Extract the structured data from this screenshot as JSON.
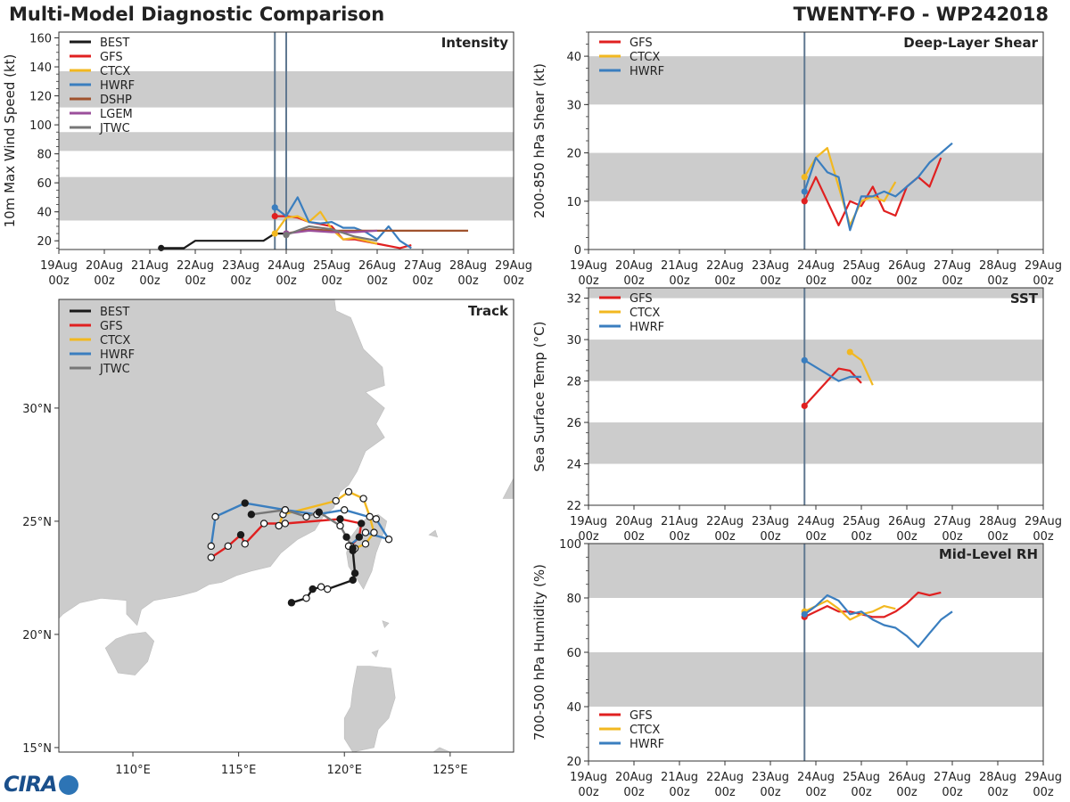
{
  "header": {
    "left_title": "Multi-Model Diagnostic Comparison",
    "right_title": "TWENTY-FO - WP242018"
  },
  "logo": {
    "text": "CIRA"
  },
  "colors": {
    "BEST": "#1a1a1a",
    "GFS": "#e02020",
    "CTCX": "#f2b820",
    "HWRF": "#3a7ebf",
    "DSHP": "#a0522d",
    "LGEM": "#9b4f9b",
    "JTWC": "#777777",
    "band": "#cccccc",
    "land": "#cccccc",
    "marker": "#607890"
  },
  "time_axis": {
    "range": [
      19,
      29
    ],
    "ticks": [
      {
        "day": 19,
        "top": "19Aug",
        "bottom": "00z"
      },
      {
        "day": 20,
        "top": "20Aug",
        "bottom": "00z"
      },
      {
        "day": 21,
        "top": "21Aug",
        "bottom": "00z"
      },
      {
        "day": 22,
        "top": "22Aug",
        "bottom": "00z"
      },
      {
        "day": 23,
        "top": "23Aug",
        "bottom": "00z"
      },
      {
        "day": 24,
        "top": "24Aug",
        "bottom": "00z"
      },
      {
        "day": 25,
        "top": "25Aug",
        "bottom": "00z"
      },
      {
        "day": 26,
        "top": "26Aug",
        "bottom": "00z"
      },
      {
        "day": 27,
        "top": "27Aug",
        "bottom": "00z"
      },
      {
        "day": 28,
        "top": "28Aug",
        "bottom": "00z"
      },
      {
        "day": 29,
        "top": "29Aug",
        "bottom": "00z"
      }
    ]
  },
  "chart_data": [
    {
      "id": "intensity",
      "type": "line",
      "title": "Intensity",
      "ylabel": "10m Max Wind Speed (kt)",
      "ylim": [
        14,
        164
      ],
      "yticks": [
        20,
        40,
        60,
        80,
        100,
        120,
        140,
        160
      ],
      "bands": [
        [
          34,
          64
        ],
        [
          82,
          95
        ],
        [
          112,
          137
        ]
      ],
      "markers": [
        23.75,
        24.0
      ],
      "legend": [
        "BEST",
        "GFS",
        "CTCX",
        "HWRF",
        "DSHP",
        "LGEM",
        "JTWC"
      ],
      "series": [
        {
          "name": "BEST",
          "x": [
            21.25,
            21.75,
            22.0,
            23.5,
            23.75,
            24.0
          ],
          "y": [
            15,
            15,
            20,
            20,
            25,
            25
          ]
        },
        {
          "name": "GFS",
          "x": [
            23.75,
            24.0,
            24.25,
            24.5,
            25.0,
            25.25,
            25.5,
            26.0,
            26.5,
            26.75
          ],
          "y": [
            37,
            37,
            36,
            33,
            30,
            21,
            21,
            18,
            15,
            17
          ]
        },
        {
          "name": "CTCX",
          "x": [
            23.75,
            24.0,
            24.25,
            24.5,
            24.75,
            25.0,
            25.25,
            25.5,
            25.75,
            26.0
          ],
          "y": [
            25,
            36,
            37,
            33,
            40,
            28,
            21,
            22,
            20,
            18
          ]
        },
        {
          "name": "HWRF",
          "x": [
            23.75,
            24.0,
            24.25,
            24.5,
            24.75,
            25.0,
            25.25,
            25.5,
            25.75,
            26.0,
            26.25,
            26.5,
            26.75
          ],
          "y": [
            43,
            37,
            50,
            33,
            32,
            33,
            29,
            29,
            26,
            21,
            30,
            20,
            15
          ]
        },
        {
          "name": "DSHP",
          "x": [
            24.0,
            24.5,
            25.0,
            25.5,
            26.0,
            26.5,
            27.0,
            27.5,
            28.0
          ],
          "y": [
            25,
            28,
            27,
            27,
            27,
            27,
            27,
            27,
            27
          ]
        },
        {
          "name": "LGEM",
          "x": [
            24.0,
            24.5,
            25.0,
            25.5,
            26.0
          ],
          "y": [
            25,
            27,
            26,
            26,
            27
          ]
        },
        {
          "name": "JTWC",
          "x": [
            24.0,
            24.5,
            25.0,
            25.5,
            26.0
          ],
          "y": [
            24,
            30,
            28,
            23,
            20
          ]
        }
      ]
    },
    {
      "id": "shear",
      "type": "line",
      "title": "Deep-Layer Shear",
      "ylabel": "200-850 hPa Shear (kt)",
      "ylim": [
        0,
        45
      ],
      "yticks": [
        0,
        10,
        20,
        30,
        40
      ],
      "bands": [
        [
          10,
          20
        ],
        [
          30,
          40
        ]
      ],
      "markers": [
        23.75
      ],
      "legend": [
        "GFS",
        "CTCX",
        "HWRF"
      ],
      "series": [
        {
          "name": "GFS",
          "x": [
            23.75,
            24.0,
            24.25,
            24.5,
            24.75,
            25.0,
            25.25,
            25.5,
            25.75,
            26.0,
            26.25,
            26.5,
            26.75
          ],
          "y": [
            10,
            15,
            10,
            5,
            10,
            9,
            13,
            8,
            7,
            13,
            15,
            13,
            19
          ]
        },
        {
          "name": "CTCX",
          "x": [
            23.75,
            24.0,
            24.25,
            24.5,
            24.75,
            25.0,
            25.25,
            25.5,
            25.75
          ],
          "y": [
            15,
            19,
            21,
            13,
            5,
            10,
            11,
            10,
            14
          ]
        },
        {
          "name": "HWRF",
          "x": [
            23.75,
            24.0,
            24.25,
            24.5,
            24.75,
            25.0,
            25.25,
            25.5,
            25.75,
            26.0,
            26.25,
            26.5,
            26.75,
            27.0
          ],
          "y": [
            12,
            19,
            16,
            15,
            4,
            11,
            11,
            12,
            11,
            13,
            15,
            18,
            20,
            22
          ]
        }
      ]
    },
    {
      "id": "sst",
      "type": "line",
      "title": "SST",
      "ylabel": "Sea Surface Temp (°C)",
      "ylim": [
        22,
        32.5
      ],
      "yticks": [
        22,
        24,
        26,
        28,
        30,
        32
      ],
      "bands": [
        [
          24,
          26
        ],
        [
          28,
          30
        ],
        [
          32,
          32.5
        ]
      ],
      "markers": [
        23.75
      ],
      "legend": [
        "GFS",
        "CTCX",
        "HWRF"
      ],
      "series": [
        {
          "name": "GFS",
          "x": [
            23.75,
            24.5,
            24.75,
            25.0
          ],
          "y": [
            26.8,
            28.6,
            28.5,
            27.9
          ]
        },
        {
          "name": "CTCX",
          "x": [
            24.75,
            25.0,
            25.25
          ],
          "y": [
            29.4,
            29.0,
            27.8
          ]
        },
        {
          "name": "HWRF",
          "x": [
            23.75,
            24.5,
            24.75,
            25.0
          ],
          "y": [
            29.0,
            28.0,
            28.2,
            28.2
          ]
        }
      ]
    },
    {
      "id": "rh",
      "type": "line",
      "title": "Mid-Level RH",
      "ylabel": "700-500 hPa Humidity (%)",
      "ylim": [
        20,
        100
      ],
      "yticks": [
        20,
        40,
        60,
        80,
        100
      ],
      "bands": [
        [
          40,
          60
        ],
        [
          80,
          100
        ]
      ],
      "markers": [
        23.75
      ],
      "legend": [
        "GFS",
        "CTCX",
        "HWRF"
      ],
      "series": [
        {
          "name": "GFS",
          "x": [
            23.75,
            24.0,
            24.25,
            24.5,
            24.75,
            25.0,
            25.25,
            25.5,
            25.75,
            26.0,
            26.25,
            26.5,
            26.75
          ],
          "y": [
            73,
            75,
            77,
            75,
            75,
            74,
            73,
            73,
            75,
            78,
            82,
            81,
            82
          ]
        },
        {
          "name": "CTCX",
          "x": [
            23.75,
            24.0,
            24.25,
            24.5,
            24.75,
            25.0,
            25.25,
            25.5,
            25.75
          ],
          "y": [
            75,
            77,
            79,
            76,
            72,
            74,
            75,
            77,
            76
          ]
        },
        {
          "name": "HWRF",
          "x": [
            23.75,
            24.0,
            24.25,
            24.5,
            24.75,
            25.0,
            25.25,
            25.5,
            25.75,
            26.0,
            26.25,
            26.5,
            26.75,
            27.0
          ],
          "y": [
            74,
            77,
            81,
            79,
            74,
            75,
            72,
            70,
            69,
            66,
            62,
            67,
            72,
            75
          ]
        }
      ]
    },
    {
      "id": "track",
      "type": "scatter",
      "title": "Track",
      "xlim": [
        106.5,
        128
      ],
      "ylim": [
        14.8,
        34.8
      ],
      "xticks": [
        {
          "v": 110,
          "label": "110°E"
        },
        {
          "v": 115,
          "label": "115°E"
        },
        {
          "v": 120,
          "label": "120°E"
        },
        {
          "v": 125,
          "label": "125°E"
        }
      ],
      "yticks": [
        {
          "v": 15,
          "label": "15°N"
        },
        {
          "v": 20,
          "label": "20°N"
        },
        {
          "v": 25,
          "label": "25°N"
        },
        {
          "v": 30,
          "label": "30°N"
        }
      ],
      "legend": [
        "BEST",
        "GFS",
        "CTCX",
        "HWRF",
        "JTWC"
      ],
      "series": [
        {
          "name": "BEST",
          "lon": [
            117.5,
            118.2,
            118.5,
            118.9,
            119.2,
            120.4,
            120.5,
            120.4
          ],
          "lat": [
            21.4,
            21.6,
            22.0,
            22.1,
            22.0,
            22.4,
            22.7,
            23.7
          ],
          "filled": [
            true,
            false,
            true,
            false,
            false,
            true,
            true,
            true
          ]
        },
        {
          "name": "GFS",
          "lon": [
            120.3,
            120.7,
            120.8,
            119.8,
            117.2,
            116.2,
            115.3,
            115.1,
            114.5,
            113.7
          ],
          "lat": [
            23.9,
            24.3,
            24.9,
            25.1,
            24.9,
            24.9,
            24.0,
            24.4,
            23.9,
            23.4
          ],
          "filled": [
            false,
            true,
            true,
            true,
            false,
            false,
            false,
            true,
            false,
            false
          ]
        },
        {
          "name": "CTCX",
          "lon": [
            120.5,
            121.0,
            121.4,
            121.2,
            120.9,
            120.2,
            119.6,
            117.1,
            116.9
          ],
          "lat": [
            23.8,
            24.0,
            24.5,
            25.2,
            26.0,
            26.3,
            25.9,
            25.3,
            24.8
          ],
          "filled": [
            false,
            false,
            false,
            false,
            false,
            false,
            false,
            false,
            false
          ]
        },
        {
          "name": "HWRF",
          "lon": [
            120.2,
            121.0,
            122.1,
            121.5,
            120.0,
            118.7,
            117.2,
            115.3,
            113.9,
            113.7
          ],
          "lat": [
            23.9,
            24.5,
            24.2,
            25.1,
            25.5,
            25.3,
            25.5,
            25.8,
            25.2,
            23.9
          ],
          "filled": [
            false,
            false,
            false,
            false,
            false,
            false,
            false,
            true,
            false,
            false
          ]
        },
        {
          "name": "JTWC",
          "lon": [
            120.4,
            120.1,
            119.8,
            118.8,
            118.2,
            117.2,
            115.6
          ],
          "lat": [
            23.8,
            24.3,
            24.8,
            25.4,
            25.2,
            25.5,
            25.3
          ],
          "filled": [
            true,
            true,
            false,
            true,
            false,
            false,
            true
          ]
        }
      ]
    }
  ]
}
